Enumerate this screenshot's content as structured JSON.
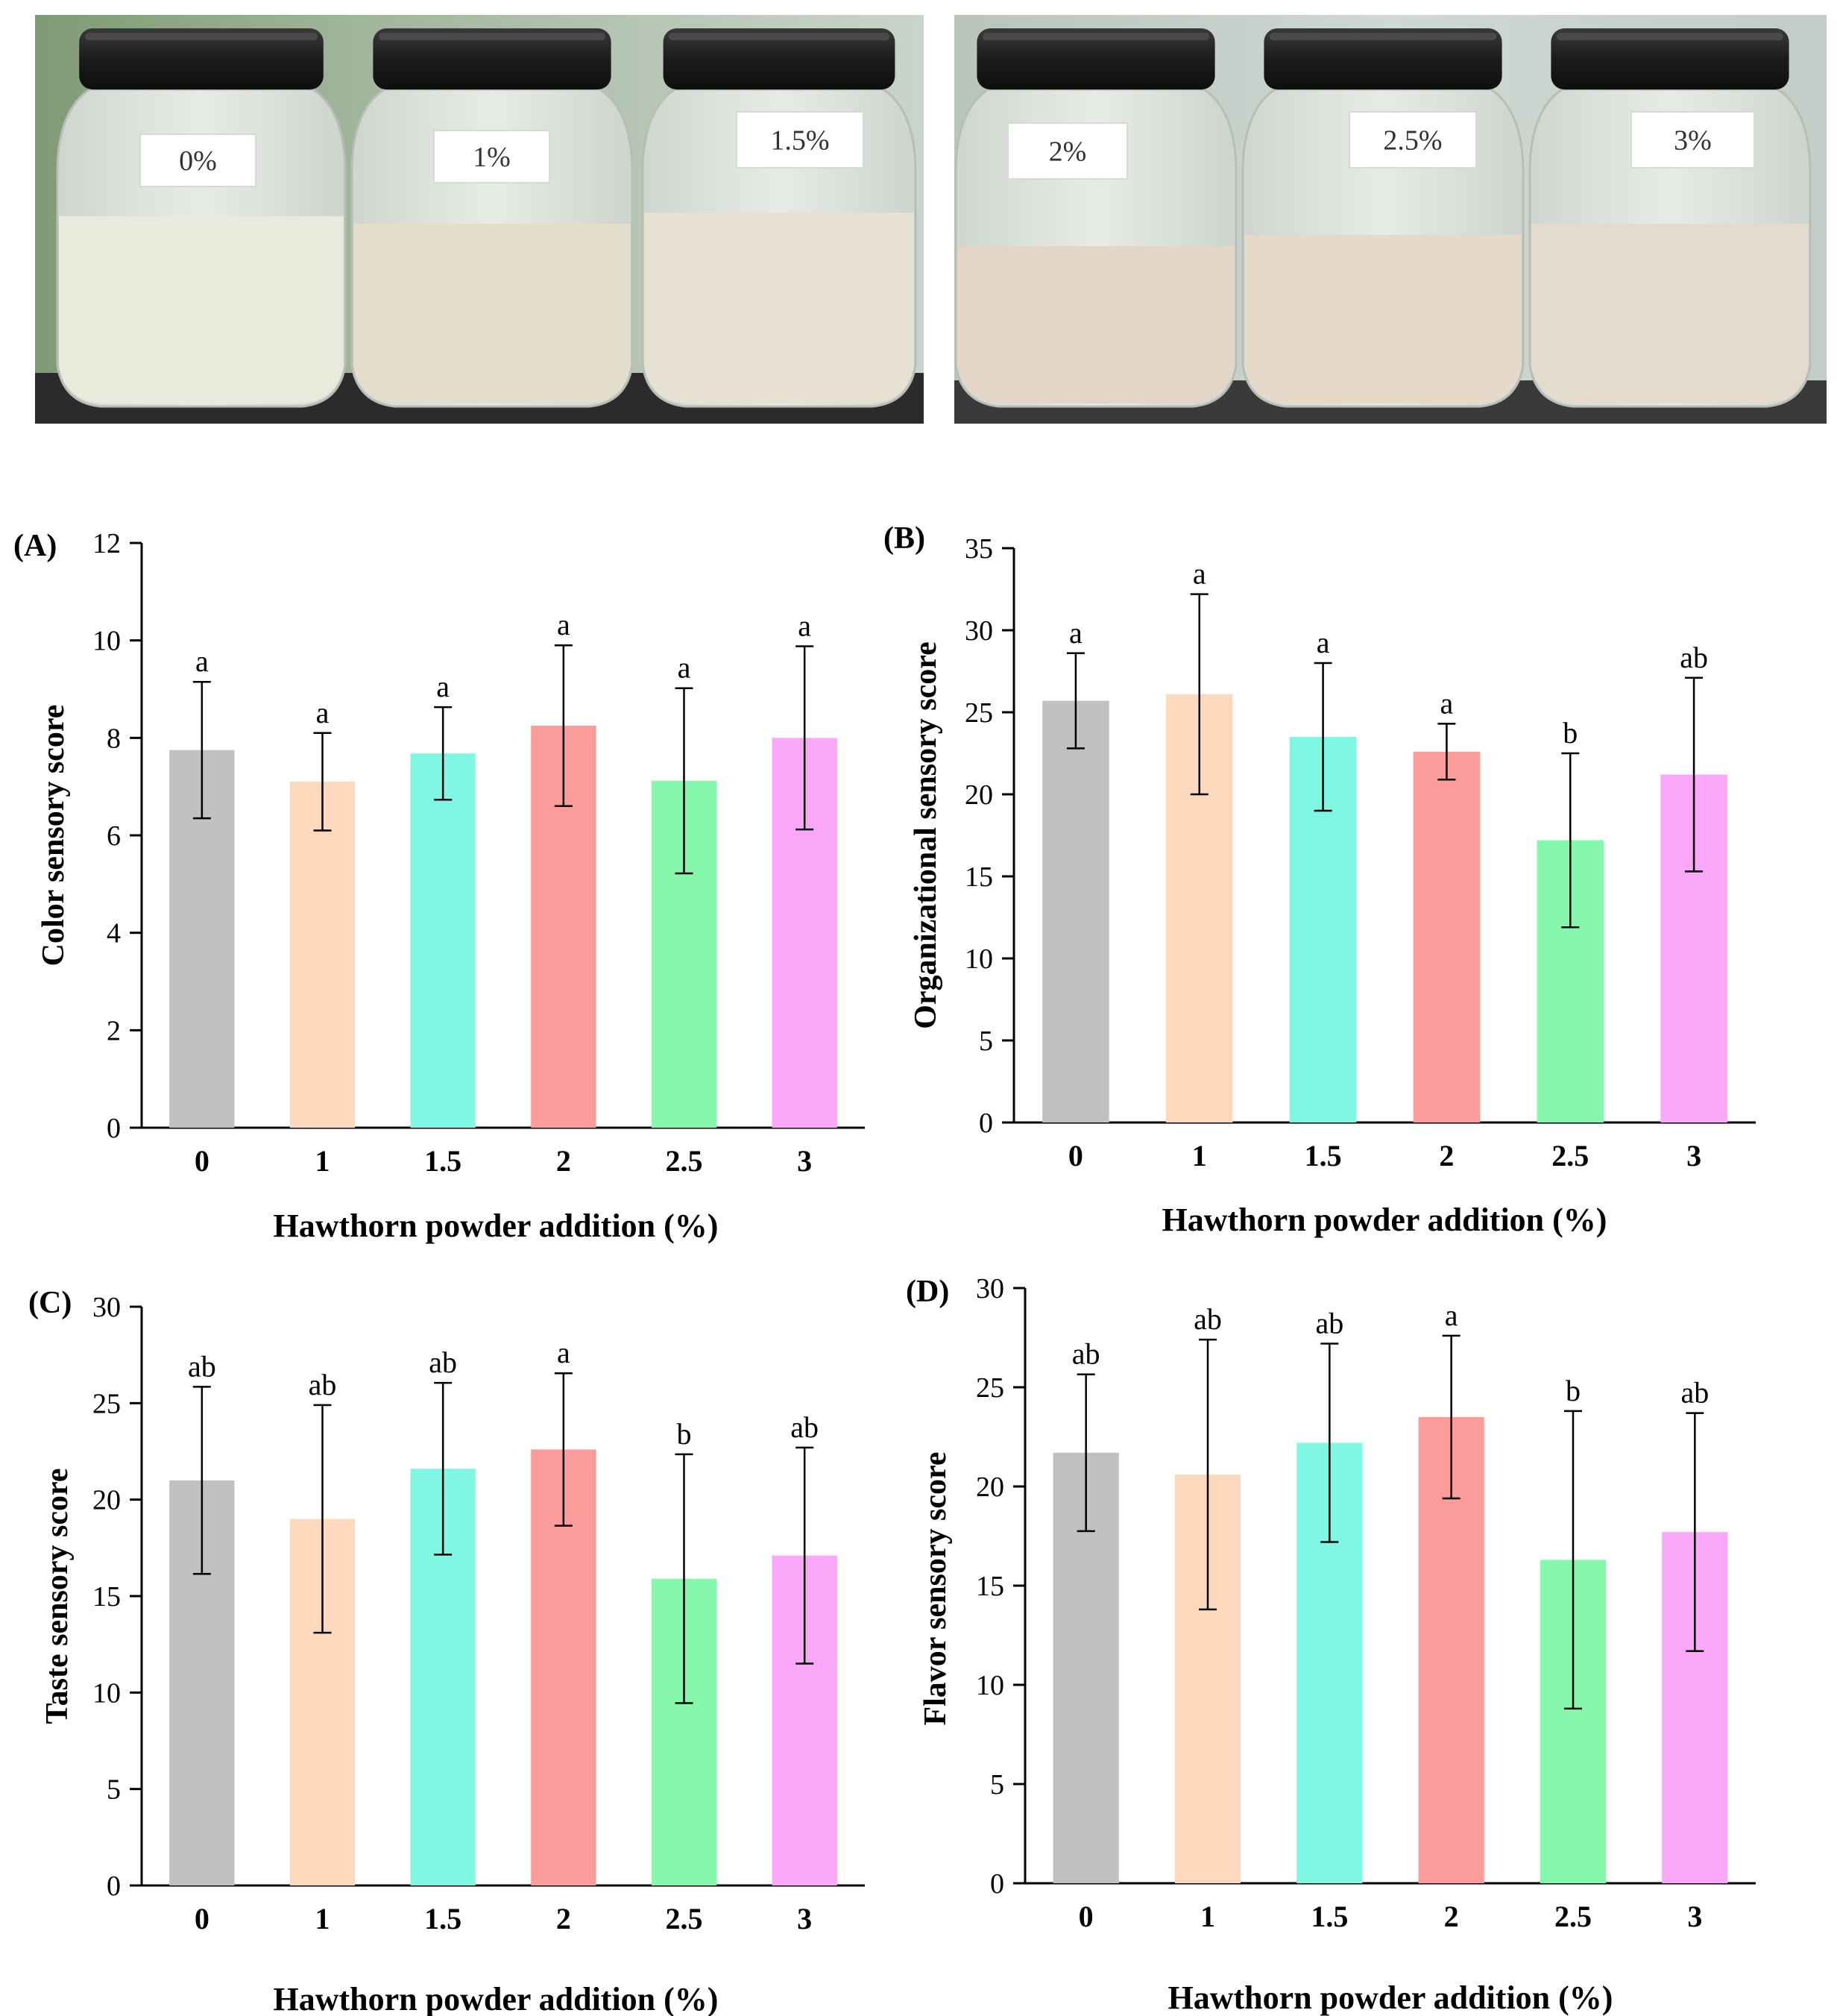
{
  "photo_panels": [
    {
      "labels": [
        "0%",
        "1%",
        "1.5%"
      ]
    },
    {
      "labels": [
        "2%",
        "2.5%",
        "3%"
      ]
    }
  ],
  "bar_colors": [
    "#c0c0c0",
    "#fcd9bc",
    "#7ff7e2",
    "#fc9c9a",
    "#86f8ac",
    "#fba7f9"
  ],
  "chart_data": [
    {
      "type": "bar",
      "panel_label": "(A)",
      "categories": [
        "0",
        "1",
        "1.5",
        "2",
        "2.5",
        "3"
      ],
      "values": [
        7.75,
        7.1,
        7.68,
        8.25,
        7.12,
        8.0
      ],
      "errors": [
        1.4,
        1.0,
        0.95,
        1.65,
        1.9,
        1.88
      ],
      "sig_letters": [
        "a",
        "a",
        "a",
        "a",
        "a",
        "a"
      ],
      "xlabel": "Hawthorn powder addition (%)",
      "ylabel": "Color sensory score",
      "ylim": [
        0,
        12
      ],
      "yticks": [
        0,
        2,
        4,
        6,
        8,
        10,
        12
      ]
    },
    {
      "type": "bar",
      "panel_label": "(B)",
      "categories": [
        "0",
        "1",
        "1.5",
        "2",
        "2.5",
        "3"
      ],
      "values": [
        25.7,
        26.1,
        23.5,
        22.6,
        17.2,
        21.2
      ],
      "errors": [
        2.9,
        6.1,
        4.5,
        1.7,
        5.3,
        5.9
      ],
      "sig_letters": [
        "a",
        "a",
        "a",
        "a",
        "b",
        "ab"
      ],
      "xlabel": "Hawthorn powder addition (%)",
      "ylabel": "Organizational sensory score",
      "ylim": [
        0,
        35
      ],
      "yticks": [
        0,
        5,
        10,
        15,
        20,
        25,
        30,
        35
      ]
    },
    {
      "type": "bar",
      "panel_label": "(C)",
      "categories": [
        "0",
        "1",
        "1.5",
        "2",
        "2.5",
        "3"
      ],
      "values": [
        21.0,
        19.0,
        21.6,
        22.6,
        15.9,
        17.1
      ],
      "errors": [
        4.85,
        5.9,
        4.45,
        3.95,
        6.45,
        5.6
      ],
      "sig_letters": [
        "ab",
        "ab",
        "ab",
        "a",
        "b",
        "ab"
      ],
      "xlabel": "Hawthorn powder addition (%)",
      "ylabel": "Taste sensory score",
      "ylim": [
        0,
        30
      ],
      "yticks": [
        0,
        5,
        10,
        15,
        20,
        25,
        30
      ]
    },
    {
      "type": "bar",
      "panel_label": "(D)",
      "categories": [
        "0",
        "1",
        "1.5",
        "2",
        "2.5",
        "3"
      ],
      "values": [
        21.7,
        20.6,
        22.2,
        23.5,
        16.3,
        17.7
      ],
      "errors": [
        3.95,
        6.8,
        5.0,
        4.1,
        7.5,
        6.0
      ],
      "sig_letters": [
        "ab",
        "ab",
        "ab",
        "a",
        "b",
        "ab"
      ],
      "xlabel": "Hawthorn powder addition (%)",
      "ylabel": "Flavor sensory score",
      "ylim": [
        0,
        30
      ],
      "yticks": [
        0,
        5,
        10,
        15,
        20,
        25,
        30
      ]
    }
  ]
}
